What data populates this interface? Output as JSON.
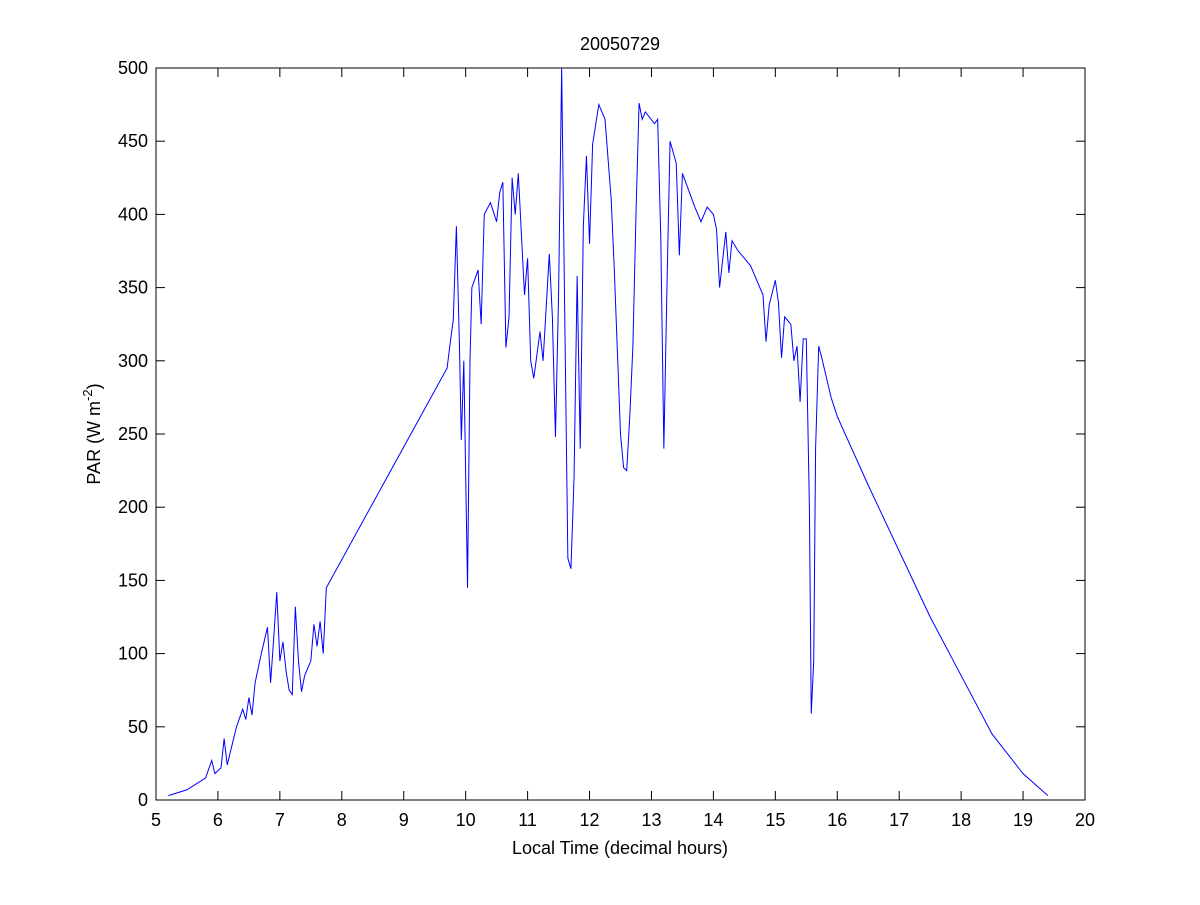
{
  "chart_data": {
    "type": "line",
    "title": "20050729",
    "xlabel": "Local Time (decimal hours)",
    "ylabel": {
      "text": "PAR (W m",
      "sup": "-2",
      "end": ")"
    },
    "xlim": [
      5,
      20
    ],
    "xticks": [
      5,
      6,
      7,
      8,
      9,
      10,
      11,
      12,
      13,
      14,
      15,
      16,
      17,
      18,
      19,
      20
    ],
    "ylim": [
      0,
      500
    ],
    "yticks": [
      0,
      50,
      100,
      150,
      200,
      250,
      300,
      350,
      400,
      450,
      500
    ],
    "grid": false,
    "series": [
      {
        "color": "#0000ff",
        "x": [
          5.2,
          5.5,
          5.8,
          5.9,
          5.95,
          6.05,
          6.1,
          6.15,
          6.3,
          6.4,
          6.45,
          6.5,
          6.55,
          6.6,
          6.7,
          6.8,
          6.85,
          6.9,
          6.95,
          7.0,
          7.05,
          7.1,
          7.15,
          7.2,
          7.25,
          7.3,
          7.35,
          7.4,
          7.5,
          7.55,
          7.6,
          7.65,
          7.7,
          7.75,
          9.7,
          9.75,
          9.8,
          9.85,
          9.9,
          9.93,
          9.97,
          10.03,
          10.07,
          10.1,
          10.2,
          10.25,
          10.3,
          10.4,
          10.5,
          10.55,
          10.6,
          10.65,
          10.7,
          10.75,
          10.8,
          10.85,
          10.95,
          11.0,
          11.05,
          11.1,
          11.2,
          11.25,
          11.35,
          11.4,
          11.45,
          11.5,
          11.55,
          11.6,
          11.65,
          11.7,
          11.75,
          11.8,
          11.85,
          11.9,
          11.95,
          12.0,
          12.05,
          12.15,
          12.25,
          12.35,
          12.4,
          12.5,
          12.55,
          12.6,
          12.65,
          12.7,
          12.75,
          12.8,
          12.85,
          12.9,
          13.05,
          13.1,
          13.15,
          13.2,
          13.25,
          13.3,
          13.4,
          13.45,
          13.5,
          13.7,
          13.8,
          13.9,
          14.0,
          14.05,
          14.1,
          14.2,
          14.25,
          14.3,
          14.4,
          14.6,
          14.8,
          14.85,
          14.9,
          15.0,
          15.05,
          15.1,
          15.15,
          15.25,
          15.3,
          15.35,
          15.4,
          15.45,
          15.5,
          15.55,
          15.58,
          15.62,
          15.65,
          15.7,
          15.75,
          15.9,
          16.0,
          16.5,
          17.0,
          17.5,
          18.0,
          18.5,
          19.0,
          19.4
        ],
        "values": [
          3,
          7,
          15,
          27,
          18,
          22,
          42,
          24,
          50,
          62,
          55,
          70,
          58,
          80,
          100,
          118,
          80,
          110,
          142,
          95,
          108,
          88,
          75,
          72,
          132,
          95,
          74,
          85,
          95,
          120,
          105,
          122,
          100,
          145,
          295,
          312,
          328,
          392,
          310,
          246,
          300,
          145,
          300,
          350,
          362,
          325,
          400,
          408,
          395,
          415,
          422,
          309,
          330,
          425,
          400,
          428,
          345,
          370,
          300,
          288,
          320,
          300,
          373,
          330,
          248,
          345,
          500,
          330,
          165,
          158,
          220,
          358,
          240,
          392,
          440,
          380,
          448,
          475,
          465,
          410,
          362,
          250,
          227,
          225,
          262,
          310,
          400,
          476,
          465,
          470,
          462,
          465,
          385,
          240,
          350,
          450,
          435,
          372,
          428,
          405,
          395,
          405,
          400,
          390,
          350,
          388,
          360,
          382,
          375,
          365,
          345,
          313,
          338,
          355,
          340,
          302,
          330,
          325,
          300,
          310,
          272,
          315,
          315,
          200,
          59,
          95,
          240,
          310,
          302,
          275,
          262,
          215,
          170,
          125,
          85,
          45,
          18,
          3
        ]
      }
    ]
  }
}
